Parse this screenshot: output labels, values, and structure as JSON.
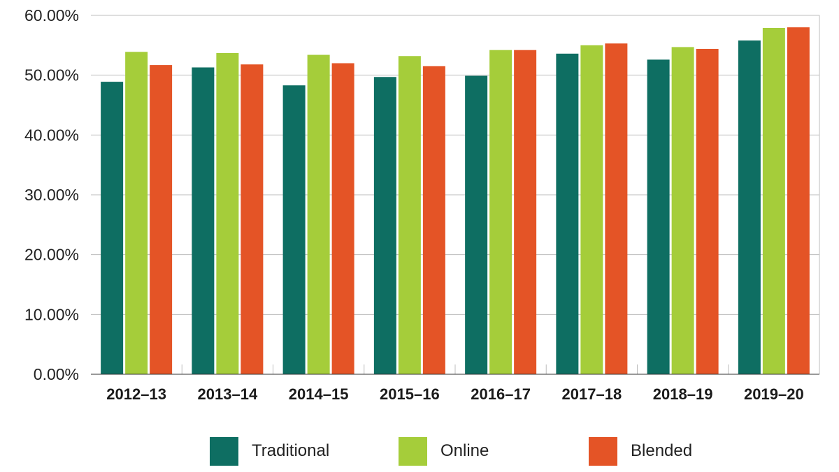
{
  "chart_data": {
    "type": "bar",
    "categories": [
      "2012–13",
      "2013–14",
      "2014–15",
      "2015–16",
      "2016–17",
      "2017–18",
      "2018–19",
      "2019–20"
    ],
    "series": [
      {
        "name": "Traditional",
        "color": "#0e6e62",
        "values": [
          48.9,
          51.3,
          48.3,
          49.7,
          49.9,
          53.6,
          52.6,
          55.8
        ]
      },
      {
        "name": "Online",
        "color": "#a5cd3a",
        "values": [
          53.9,
          53.7,
          53.4,
          53.2,
          54.2,
          55.0,
          54.7,
          57.9
        ]
      },
      {
        "name": "Blended",
        "color": "#e45426",
        "values": [
          51.7,
          51.8,
          52.0,
          51.5,
          54.2,
          55.3,
          54.4,
          58.0
        ]
      }
    ],
    "yticks": [
      "0.00%",
      "10.00%",
      "20.00%",
      "30.00%",
      "40.00%",
      "50.00%",
      "60.00%"
    ],
    "ylim": [
      0,
      60
    ],
    "title": "",
    "xlabel": "",
    "ylabel": "",
    "grid": true,
    "legend_position": "bottom-center"
  }
}
